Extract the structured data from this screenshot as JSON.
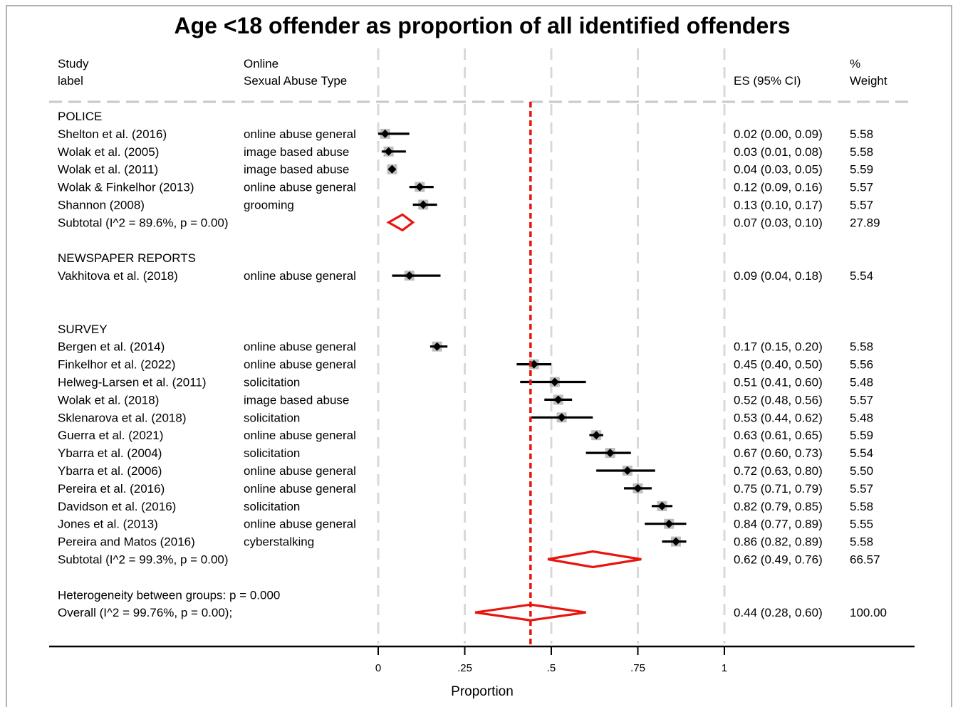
{
  "chart_data": {
    "type": "forest",
    "title": "Age <18 offender as proportion of all identified offenders",
    "xlabel": "Proportion",
    "xlim": [
      0,
      1
    ],
    "x_ticks": [
      {
        "value": 0,
        "label": "0"
      },
      {
        "value": 0.25,
        "label": ".25"
      },
      {
        "value": 0.5,
        "label": ".5"
      },
      {
        "value": 0.75,
        "label": ".75"
      },
      {
        "value": 1,
        "label": "1"
      }
    ],
    "overall_reference_line": 0.44,
    "grid": "vertical dashed",
    "colors": {
      "point": "#000000",
      "weight_box": "#bdbdbd",
      "diamond": "#e8150f",
      "reference_line": "#e8150f",
      "grid": "#d9d9d9"
    },
    "columns": {
      "study_header": [
        "Study",
        "label"
      ],
      "type_header": [
        "Online",
        "Sexual Abuse Type"
      ],
      "es_header": "ES (95% CI)",
      "weight_header": [
        "%",
        "Weight"
      ]
    },
    "groups": [
      {
        "name": "POLICE",
        "studies": [
          {
            "label": "Shelton et al. (2016)",
            "type": "online abuse general",
            "es": 0.02,
            "lo": 0.0,
            "hi": 0.09,
            "es_text": "0.02 (0.00, 0.09)",
            "weight": "5.58"
          },
          {
            "label": "Wolak et al. (2005)",
            "type": "image based abuse",
            "es": 0.03,
            "lo": 0.01,
            "hi": 0.08,
            "es_text": "0.03 (0.01, 0.08)",
            "weight": "5.58"
          },
          {
            "label": "Wolak et al. (2011)",
            "type": "image based abuse",
            "es": 0.04,
            "lo": 0.03,
            "hi": 0.05,
            "es_text": "0.04 (0.03, 0.05)",
            "weight": "5.59"
          },
          {
            "label": "Wolak & Finkelhor (2013)",
            "type": "online abuse general",
            "es": 0.12,
            "lo": 0.09,
            "hi": 0.16,
            "es_text": "0.12 (0.09, 0.16)",
            "weight": "5.57"
          },
          {
            "label": "Shannon (2008)",
            "type": "grooming",
            "es": 0.13,
            "lo": 0.1,
            "hi": 0.17,
            "es_text": "0.13 (0.10, 0.17)",
            "weight": "5.57"
          }
        ],
        "subtotal": {
          "label": "Subtotal  (I^2 = 89.6%, p = 0.00)",
          "es": 0.07,
          "lo": 0.03,
          "hi": 0.1,
          "es_text": "0.07 (0.03, 0.10)",
          "weight": "27.89"
        }
      },
      {
        "name": "NEWSPAPER REPORTS",
        "studies": [
          {
            "label": "Vakhitova et al. (2018)",
            "type": "online abuse general",
            "es": 0.09,
            "lo": 0.04,
            "hi": 0.18,
            "es_text": "0.09 (0.04, 0.18)",
            "weight": "5.54"
          }
        ]
      },
      {
        "name": "SURVEY",
        "studies": [
          {
            "label": "Bergen et al. (2014)",
            "type": "online abuse general",
            "es": 0.17,
            "lo": 0.15,
            "hi": 0.2,
            "es_text": "0.17 (0.15, 0.20)",
            "weight": "5.58"
          },
          {
            "label": "Finkelhor et al. (2022)",
            "type": "online abuse general",
            "es": 0.45,
            "lo": 0.4,
            "hi": 0.5,
            "es_text": "0.45 (0.40, 0.50)",
            "weight": "5.56"
          },
          {
            "label": "Helweg-Larsen et al. (2011)",
            "type": "solicitation",
            "es": 0.51,
            "lo": 0.41,
            "hi": 0.6,
            "es_text": "0.51 (0.41, 0.60)",
            "weight": "5.48"
          },
          {
            "label": "Wolak et al. (2018)",
            "type": "image based abuse",
            "es": 0.52,
            "lo": 0.48,
            "hi": 0.56,
            "es_text": "0.52 (0.48, 0.56)",
            "weight": "5.57"
          },
          {
            "label": "Sklenarova et al. (2018)",
            "type": "solicitation",
            "es": 0.53,
            "lo": 0.44,
            "hi": 0.62,
            "es_text": "0.53 (0.44, 0.62)",
            "weight": "5.48"
          },
          {
            "label": "Guerra et al. (2021)",
            "type": "online abuse general",
            "es": 0.63,
            "lo": 0.61,
            "hi": 0.65,
            "es_text": "0.63 (0.61, 0.65)",
            "weight": "5.59"
          },
          {
            "label": "Ybarra et al. (2004)",
            "type": "solicitation",
            "es": 0.67,
            "lo": 0.6,
            "hi": 0.73,
            "es_text": "0.67 (0.60, 0.73)",
            "weight": "5.54"
          },
          {
            "label": "Ybarra et al. (2006)",
            "type": "online abuse general",
            "es": 0.72,
            "lo": 0.63,
            "hi": 0.8,
            "es_text": "0.72 (0.63, 0.80)",
            "weight": "5.50"
          },
          {
            "label": "Pereira et al. (2016)",
            "type": "online abuse general",
            "es": 0.75,
            "lo": 0.71,
            "hi": 0.79,
            "es_text": "0.75 (0.71, 0.79)",
            "weight": "5.57"
          },
          {
            "label": "Davidson et al. (2016)",
            "type": "solicitation",
            "es": 0.82,
            "lo": 0.79,
            "hi": 0.85,
            "es_text": "0.82 (0.79, 0.85)",
            "weight": "5.58"
          },
          {
            "label": "Jones et al. (2013)",
            "type": "online abuse general",
            "es": 0.84,
            "lo": 0.77,
            "hi": 0.89,
            "es_text": "0.84 (0.77, 0.89)",
            "weight": "5.55"
          },
          {
            "label": "Pereira and Matos (2016)",
            "type": "cyberstalking",
            "es": 0.86,
            "lo": 0.82,
            "hi": 0.89,
            "es_text": "0.86 (0.82, 0.89)",
            "weight": "5.58"
          }
        ],
        "subtotal": {
          "label": "Subtotal  (I^2 = 99.3%, p = 0.00)",
          "es": 0.62,
          "lo": 0.49,
          "hi": 0.76,
          "es_text": "0.62 (0.49, 0.76)",
          "weight": "66.57"
        }
      }
    ],
    "heterogeneity_text": "Heterogeneity between groups: p = 0.000",
    "overall": {
      "label": "Overall  (I^2 = 99.76%, p = 0.00);",
      "es": 0.44,
      "lo": 0.28,
      "hi": 0.6,
      "es_text": "0.44 (0.28, 0.60)",
      "weight": "100.00"
    }
  }
}
